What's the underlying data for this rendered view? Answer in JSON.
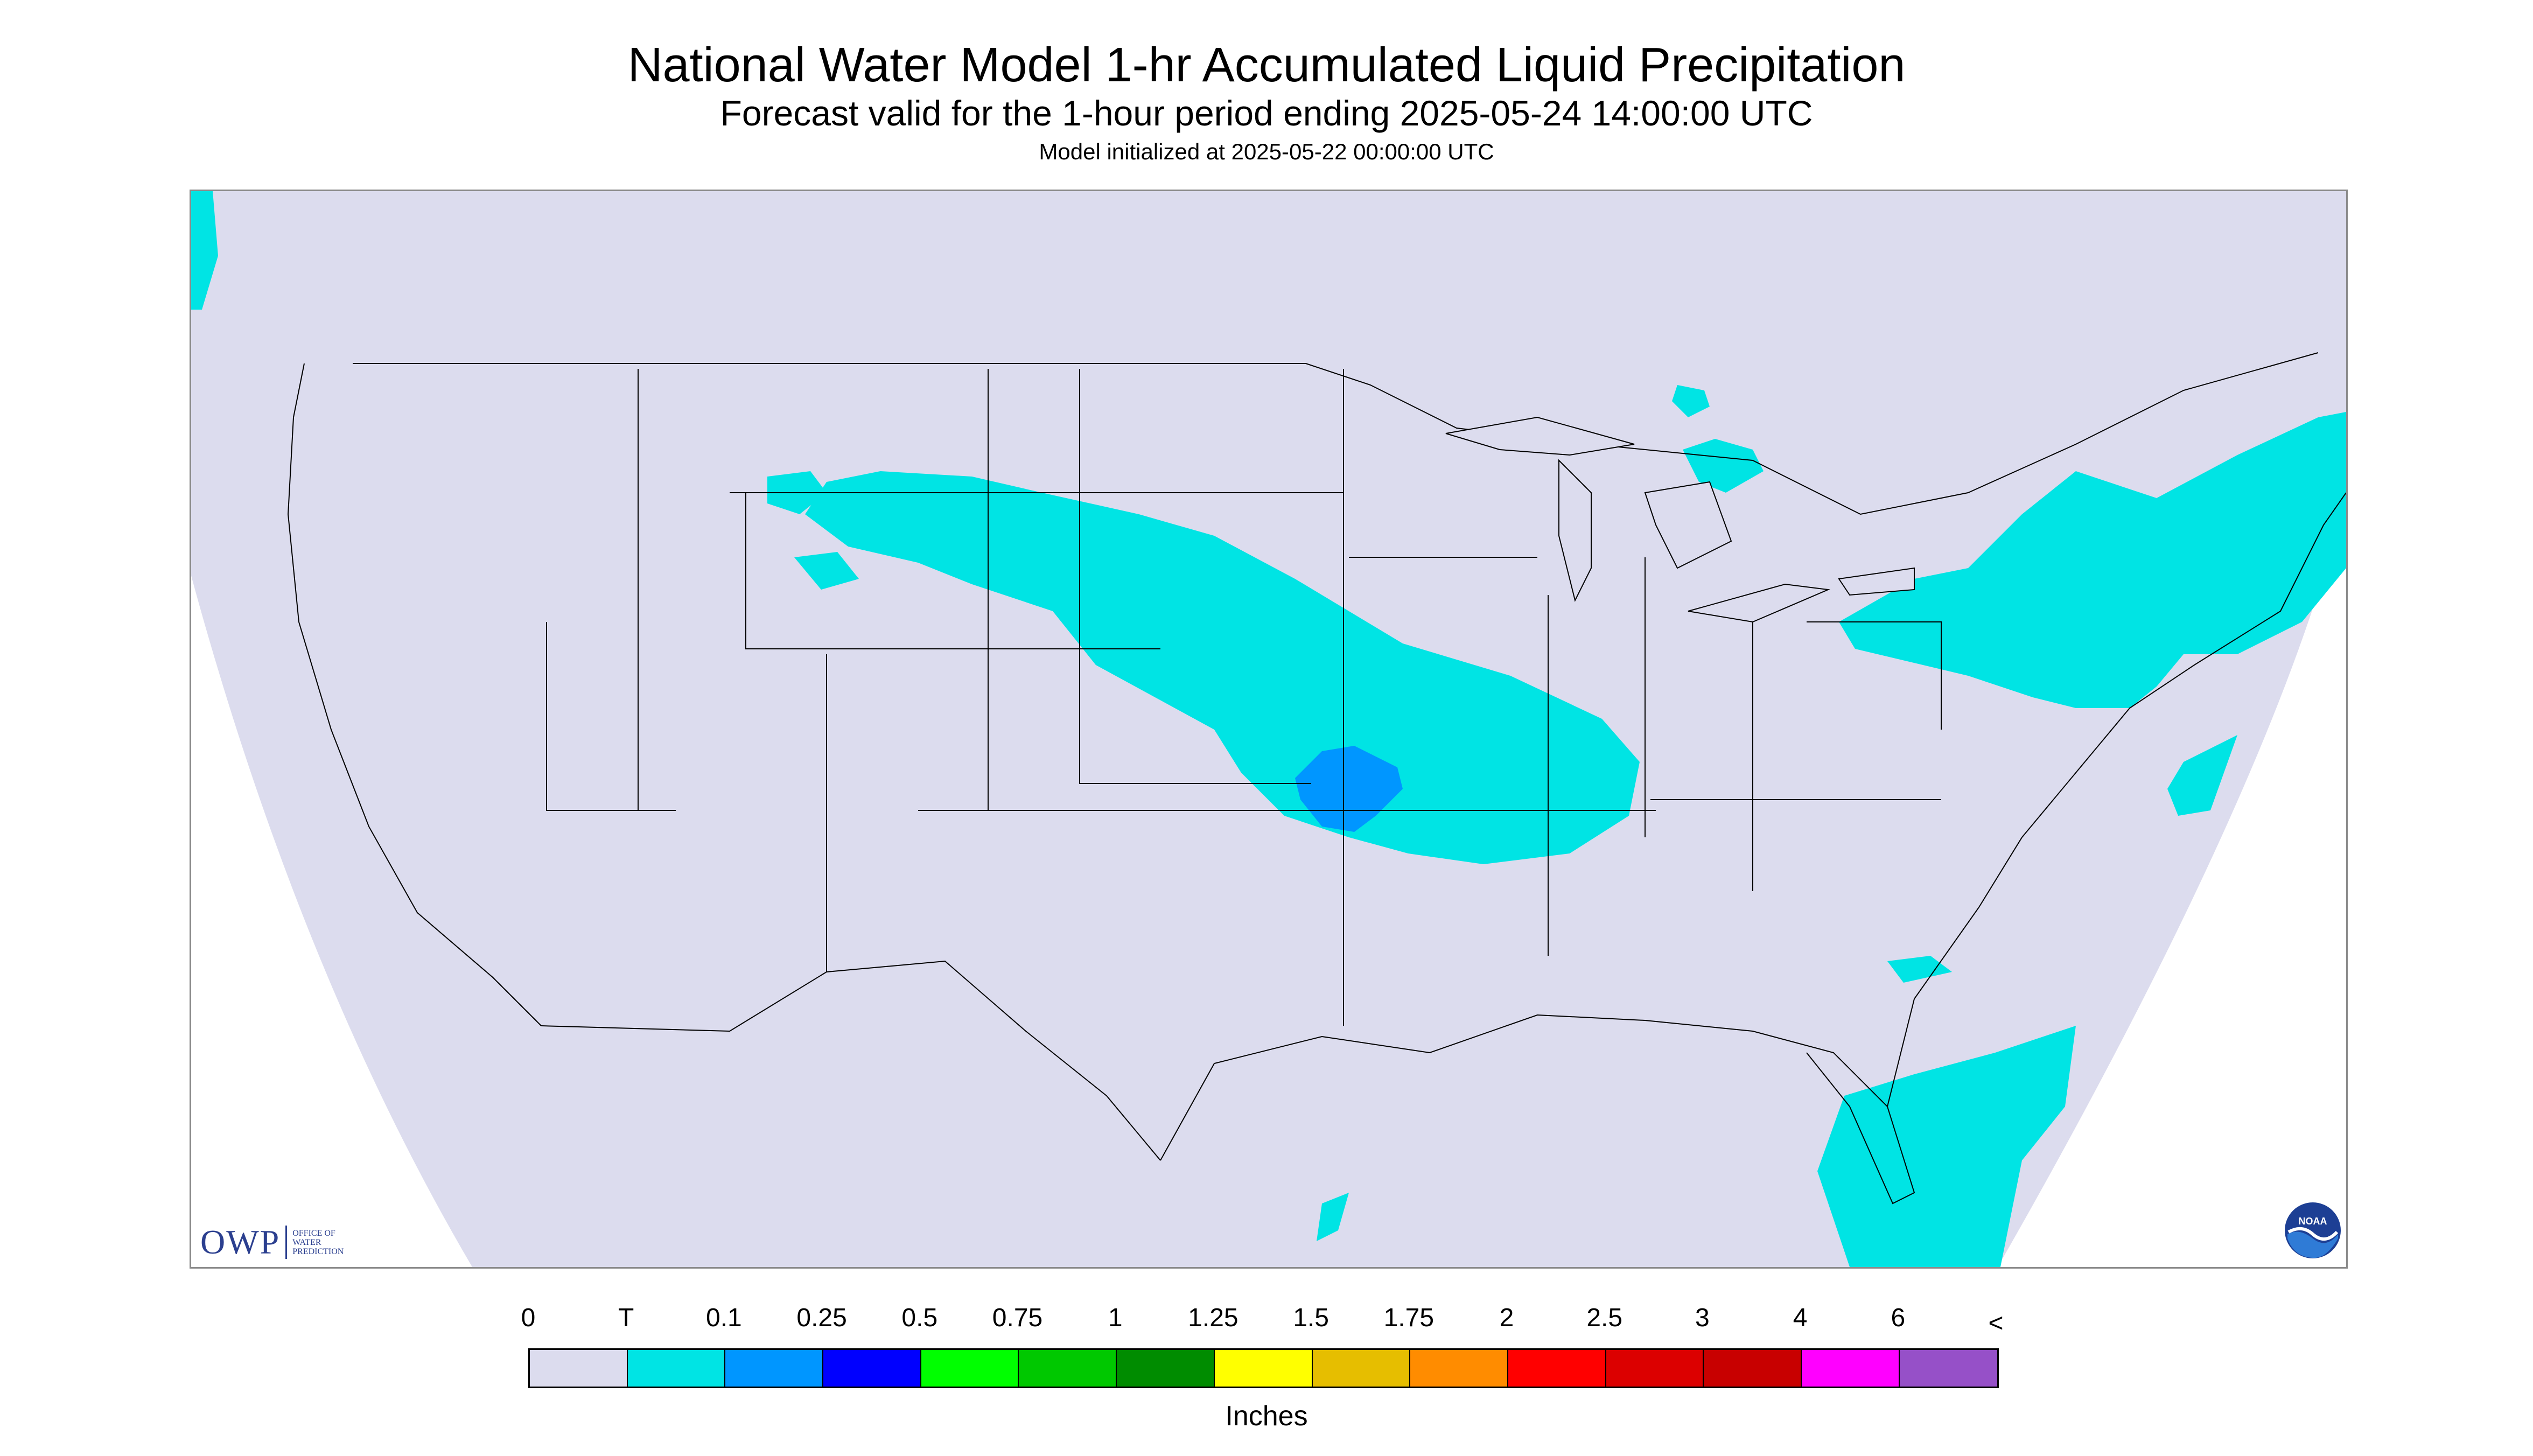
{
  "title": "National Water Model 1-hr Accumulated Liquid Precipitation",
  "subtitle": "Forecast valid for the 1-hour period ending 2025-05-24 14:00:00 UTC",
  "init_text": "Model initialized at 2025-05-22 00:00:00 UTC",
  "map": {
    "region": "Continental United States",
    "background_color": "#dcdcee",
    "precip_colors": {
      "trace_to_0.1": "#00e4e4",
      "0.1_to_0.25": "#0096ff"
    }
  },
  "logos": {
    "owp_abbrev": "OWP",
    "owp_lines": [
      "OFFICE OF",
      "WATER",
      "PREDICTION"
    ],
    "noaa_text": "NOAA"
  },
  "legend": {
    "labels": [
      "0",
      "T",
      "0.1",
      "0.25",
      "0.5",
      "0.75",
      "1",
      "1.25",
      "1.5",
      "1.75",
      "2",
      "2.5",
      "3",
      "4",
      "6",
      "<"
    ],
    "colors": [
      "#dcdcee",
      "#00e4e4",
      "#0096ff",
      "#0000ff",
      "#00ff00",
      "#00c800",
      "#008c00",
      "#ffff00",
      "#e6be00",
      "#ff8c00",
      "#ff0000",
      "#dc0000",
      "#c80000",
      "#ff00ff",
      "#9650c8"
    ],
    "units": "Inches"
  }
}
